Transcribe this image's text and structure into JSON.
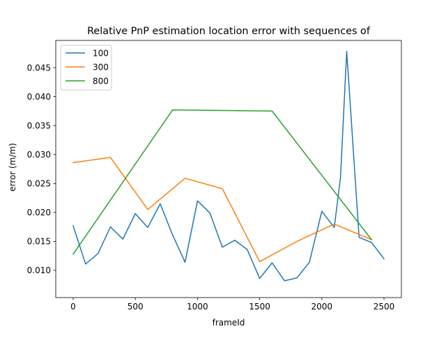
{
  "chart_data": {
    "type": "line",
    "title": "Relative PnP estimation location error with sequences of",
    "xlabel": "frameId",
    "ylabel": "error (m/m)",
    "xlim": [
      -140,
      2640
    ],
    "ylim": [
      0.0053,
      0.0497
    ],
    "xticks": [
      0,
      500,
      1000,
      1500,
      2000,
      2500
    ],
    "yticks": [
      0.01,
      0.015,
      0.02,
      0.025,
      0.03,
      0.035,
      0.04,
      0.045
    ],
    "ytick_labels": [
      "0.010",
      "0.015",
      "0.020",
      "0.025",
      "0.030",
      "0.035",
      "0.040",
      "0.045"
    ],
    "grid": false,
    "legend_position": "upper-left",
    "series": [
      {
        "name": "100",
        "color": "#1f77b4",
        "x": [
          0,
          100,
          200,
          300,
          400,
          500,
          600,
          700,
          800,
          900,
          1000,
          1100,
          1200,
          1300,
          1400,
          1500,
          1600,
          1700,
          1800,
          1900,
          2000,
          2100,
          2150,
          2200,
          2300,
          2400,
          2500
        ],
        "y": [
          0.0177,
          0.0111,
          0.0129,
          0.0175,
          0.0154,
          0.0198,
          0.0174,
          0.0215,
          0.0161,
          0.0114,
          0.022,
          0.0199,
          0.014,
          0.0152,
          0.0136,
          0.0086,
          0.0113,
          0.0082,
          0.0087,
          0.0114,
          0.0202,
          0.0174,
          0.026,
          0.0478,
          0.0157,
          0.0148,
          0.012
        ]
      },
      {
        "name": "300",
        "color": "#ff7f0e",
        "x": [
          0,
          300,
          600,
          900,
          1200,
          1500,
          1800,
          2100,
          2400
        ],
        "y": [
          0.0286,
          0.0295,
          0.0205,
          0.0259,
          0.0241,
          0.0115,
          0.015,
          0.018,
          0.0153
        ]
      },
      {
        "name": "800",
        "color": "#2ca02c",
        "x": [
          0,
          800,
          1600,
          2400
        ],
        "y": [
          0.0128,
          0.0377,
          0.0375,
          0.0153
        ]
      }
    ]
  }
}
